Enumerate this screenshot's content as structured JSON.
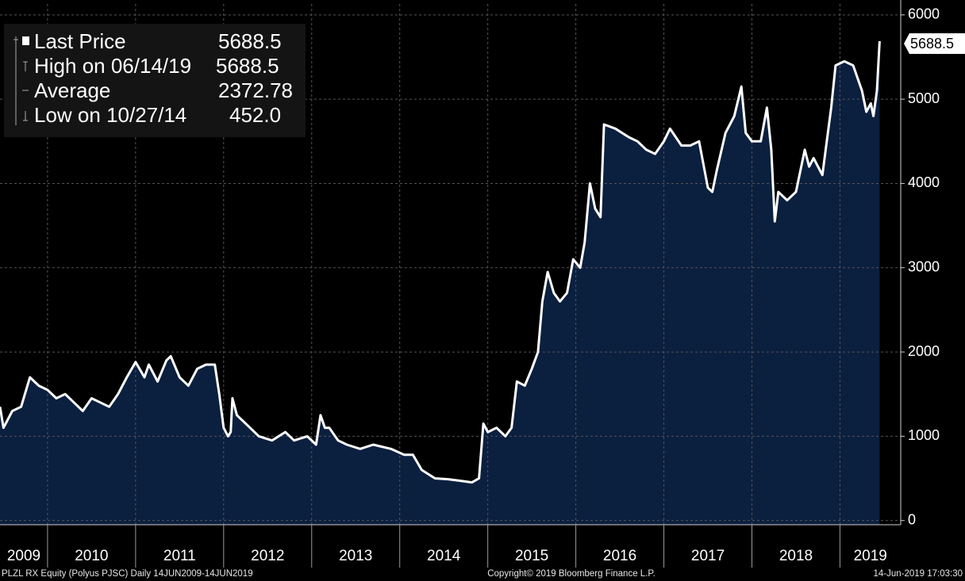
{
  "chart_data": {
    "type": "area",
    "x": [
      2009.46,
      2009.5,
      2009.6,
      2009.7,
      2009.8,
      2009.9,
      2010.0,
      2010.1,
      2010.2,
      2010.3,
      2010.4,
      2010.5,
      2010.6,
      2010.7,
      2010.8,
      2010.9,
      2011.0,
      2011.1,
      2011.15,
      2011.25,
      2011.35,
      2011.4,
      2011.5,
      2011.6,
      2011.7,
      2011.8,
      2011.9,
      2011.95,
      2012.0,
      2012.05,
      2012.08,
      2012.1,
      2012.15,
      2012.3,
      2012.4,
      2012.55,
      2012.7,
      2012.8,
      2012.95,
      2013.05,
      2013.1,
      2013.15,
      2013.2,
      2013.3,
      2013.4,
      2013.55,
      2013.7,
      2013.9,
      2014.05,
      2014.15,
      2014.25,
      2014.4,
      2014.55,
      2014.7,
      2014.82,
      2014.9,
      2014.95,
      2015.0,
      2015.1,
      2015.2,
      2015.27,
      2015.33,
      2015.42,
      2015.5,
      2015.57,
      2015.62,
      2015.68,
      2015.75,
      2015.82,
      2015.9,
      2015.97,
      2016.05,
      2016.1,
      2016.16,
      2016.22,
      2016.28,
      2016.32,
      2016.45,
      2016.6,
      2016.7,
      2016.8,
      2016.9,
      2017.0,
      2017.07,
      2017.2,
      2017.3,
      2017.4,
      2017.5,
      2017.55,
      2017.6,
      2017.7,
      2017.75,
      2017.8,
      2017.88,
      2017.93,
      2018.0,
      2018.1,
      2018.17,
      2018.22,
      2018.26,
      2018.3,
      2018.4,
      2018.5,
      2018.6,
      2018.65,
      2018.7,
      2018.8,
      2018.85,
      2018.9,
      2018.95,
      2019.05,
      2019.15,
      2019.25,
      2019.3,
      2019.35,
      2019.38,
      2019.42,
      2019.45
    ],
    "series": [
      {
        "name": "Last Price",
        "color": "#ffffff",
        "fill": "#0b1f3f",
        "values": [
          1350,
          1100,
          1300,
          1350,
          1700,
          1600,
          1550,
          1450,
          1500,
          1400,
          1300,
          1450,
          1400,
          1350,
          1500,
          1700,
          1880,
          1700,
          1850,
          1650,
          1900,
          1950,
          1700,
          1600,
          1800,
          1850,
          1850,
          1500,
          1100,
          1000,
          1050,
          1450,
          1250,
          1100,
          1000,
          950,
          1050,
          950,
          1000,
          900,
          1250,
          1100,
          1100,
          950,
          900,
          850,
          900,
          850,
          780,
          780,
          600,
          500,
          490,
          470,
          452,
          500,
          1150,
          1050,
          1100,
          1000,
          1100,
          1650,
          1600,
          1800,
          2000,
          2600,
          2950,
          2700,
          2600,
          2700,
          3100,
          3000,
          3300,
          4000,
          3700,
          3600,
          4700,
          4650,
          4550,
          4500,
          4400,
          4350,
          4500,
          4650,
          4450,
          4450,
          4500,
          3950,
          3900,
          4150,
          4600,
          4700,
          4800,
          5150,
          4600,
          4500,
          4500,
          4900,
          4400,
          3550,
          3900,
          3800,
          3900,
          4400,
          4200,
          4300,
          4100,
          4500,
          4900,
          5400,
          5450,
          5400,
          5100,
          4850,
          4950,
          4800,
          5100,
          5688.5
        ]
      }
    ],
    "xlim": [
      2009.46,
      2019.69
    ],
    "xticks": [
      2010,
      2011,
      2012,
      2013,
      2014,
      2015,
      2016,
      2017,
      2018,
      2019
    ],
    "year_labels": [
      "2009",
      "2010",
      "2011",
      "2012",
      "2013",
      "2014",
      "2015",
      "2016",
      "2017",
      "2018",
      "2019"
    ],
    "ylim": [
      -50,
      6130
    ],
    "yticks": [
      0,
      1000,
      2000,
      3000,
      4000,
      5000,
      6000
    ],
    "grid": true,
    "last_price_label": "5688.5",
    "stats": [
      {
        "label": "High on 06/14/19",
        "value": "5688.5"
      },
      {
        "label": "Average",
        "value": "2372.78"
      },
      {
        "label": "Low on 10/27/14",
        "value": "452.0"
      }
    ],
    "footer": {
      "left": "PLZL RX Equity (Polyus PJSC)  Daily 14JUN2009-14JUN2019",
      "center": "Copyright© 2019 Bloomberg Finance L.P.",
      "right": "14-Jun-2019 17:03:30"
    }
  }
}
